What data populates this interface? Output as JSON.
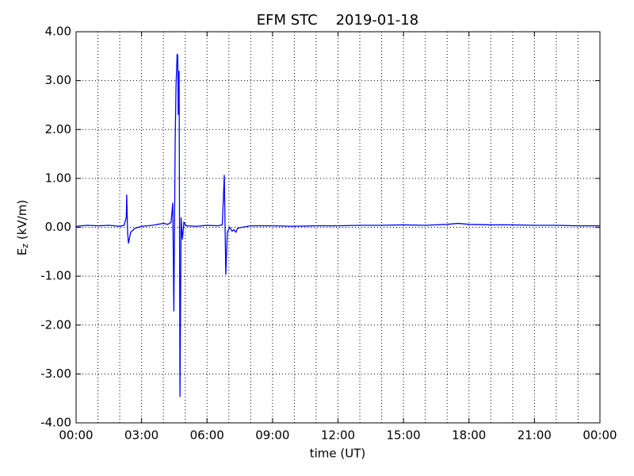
{
  "chart_data": {
    "type": "line",
    "title": "EFM STC    2019-01-18",
    "xlabel": "time (UT)",
    "ylabel": {
      "base": "E",
      "subscript": "z",
      "unit": " (kV/m)"
    },
    "color": "#0000ff",
    "x": [
      0,
      0.5,
      1,
      1.5,
      2,
      2.2,
      2.3,
      2.32,
      2.36,
      2.4,
      2.5,
      2.7,
      3,
      3.5,
      4,
      4.2,
      4.35,
      4.43,
      4.48,
      4.54,
      4.58,
      4.63,
      4.66,
      4.68,
      4.72,
      4.76,
      4.81,
      4.87,
      4.94,
      5.05,
      5.5,
      6,
      6.5,
      6.7,
      6.79,
      6.86,
      6.93,
      7.04,
      7.15,
      7.23,
      7.32,
      7.4,
      7.6,
      8,
      9,
      10,
      11,
      12,
      13,
      14,
      15,
      16,
      17,
      17.5,
      18,
      19,
      20,
      21,
      22,
      23,
      24
    ],
    "values": [
      0.02,
      0.04,
      0.03,
      0.04,
      0.02,
      0.04,
      0.2,
      0.67,
      -0.1,
      -0.33,
      -0.1,
      -0.02,
      0.02,
      0.04,
      0.08,
      0.06,
      0.1,
      0.5,
      -1.72,
      1.75,
      2.9,
      3.55,
      3.5,
      2.3,
      3.2,
      -3.47,
      0.2,
      -0.25,
      0.1,
      0.03,
      0.02,
      0.04,
      0.03,
      0.05,
      1.07,
      -0.97,
      -0.1,
      0.0,
      -0.08,
      -0.05,
      -0.1,
      -0.02,
      0.0,
      0.03,
      0.03,
      0.02,
      0.03,
      0.03,
      0.04,
      0.04,
      0.05,
      0.04,
      0.06,
      0.08,
      0.06,
      0.05,
      0.05,
      0.04,
      0.04,
      0.03,
      0.03
    ],
    "xlim": [
      0,
      24
    ],
    "xticks": [
      {
        "value": 0,
        "label": "00:00"
      },
      {
        "value": 3,
        "label": "03:00"
      },
      {
        "value": 6,
        "label": "06:00"
      },
      {
        "value": 9,
        "label": "09:00"
      },
      {
        "value": 12,
        "label": "12:00"
      },
      {
        "value": 15,
        "label": "15:00"
      },
      {
        "value": 18,
        "label": "18:00"
      },
      {
        "value": 21,
        "label": "21:00"
      },
      {
        "value": 24,
        "label": "00:00"
      }
    ],
    "xminorgrid": [
      1,
      2,
      4,
      5,
      7,
      8,
      10,
      11,
      13,
      14,
      16,
      17,
      19,
      20,
      22,
      23
    ],
    "ylim": [
      -4,
      4
    ],
    "yticks": [
      {
        "value": -4,
        "label": "-4.00"
      },
      {
        "value": -3,
        "label": "-3.00"
      },
      {
        "value": -2,
        "label": "-2.00"
      },
      {
        "value": -1,
        "label": "-1.00"
      },
      {
        "value": 0,
        "label": "0.00"
      },
      {
        "value": 1,
        "label": "1.00"
      },
      {
        "value": 2,
        "label": "2.00"
      },
      {
        "value": 3,
        "label": "3.00"
      },
      {
        "value": 4,
        "label": "4.00"
      }
    ],
    "grid": true
  }
}
